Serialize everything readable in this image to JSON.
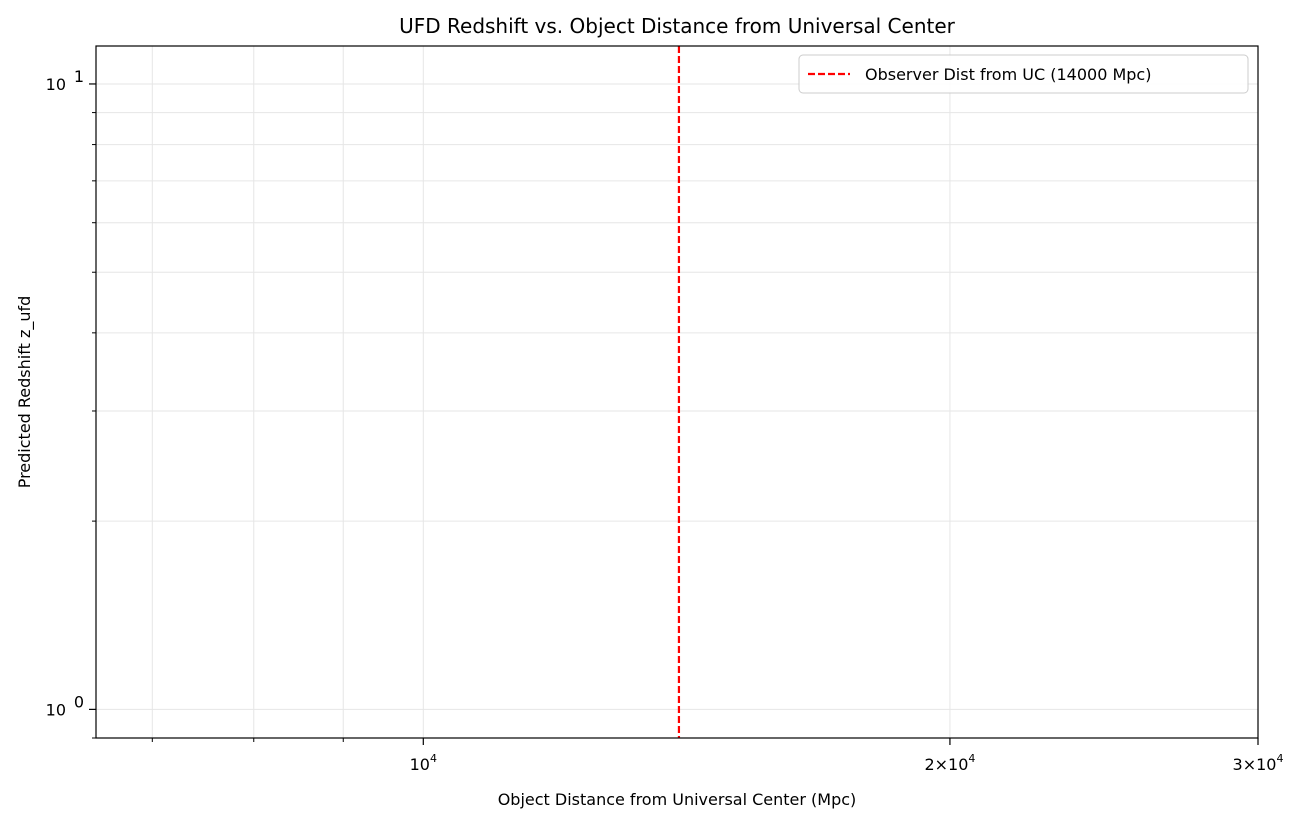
{
  "chart_data": {
    "type": "line",
    "title": "UFD Redshift vs. Object Distance from Universal Center",
    "xlabel": "Object Distance from Universal Center (Mpc)",
    "ylabel": "Predicted Redshift z_ufd",
    "xscale": "log",
    "yscale": "log",
    "xlim": [
      6500,
      30000
    ],
    "ylim": [
      0.9,
      11.5
    ],
    "grid": true,
    "legend_position": "upper-right",
    "x_ticks": [
      {
        "value": 10000,
        "base": "10",
        "exp": "4",
        "coef": ""
      },
      {
        "value": 20000,
        "base": "10",
        "exp": "4",
        "coef": "2"
      },
      {
        "value": 30000,
        "base": "10",
        "exp": "4",
        "coef": "3"
      }
    ],
    "x_minor_ticks": [
      7000,
      8000,
      9000,
      40000
    ],
    "y_ticks": [
      {
        "value": 1,
        "base": "10",
        "exp": "0"
      },
      {
        "value": 10,
        "base": "10",
        "exp": "1"
      }
    ],
    "y_minor_ticks": [
      0.9,
      2,
      3,
      4,
      5,
      6,
      7,
      8,
      9
    ],
    "series": [
      {
        "name": "Observer Dist from UC (14000 Mpc)",
        "kind": "vline",
        "x": 14000,
        "color": "#ff0000",
        "linestyle": "dashed"
      }
    ]
  }
}
